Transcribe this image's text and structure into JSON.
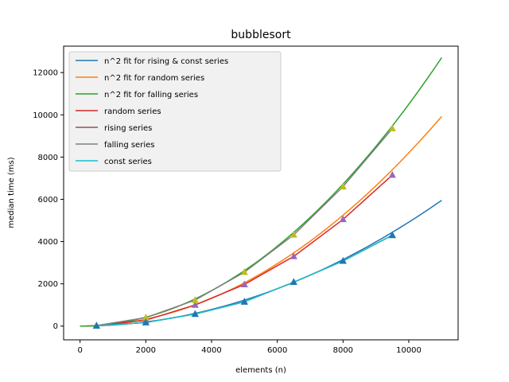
{
  "chart_data": {
    "type": "line",
    "title": "bubblesort",
    "xlabel": "elements (n)",
    "ylabel": "median time (ms)",
    "xlim": [
      -500,
      11500
    ],
    "ylim": [
      -650,
      13250
    ],
    "xticks": [
      0,
      2000,
      4000,
      6000,
      8000,
      10000
    ],
    "yticks": [
      0,
      2000,
      4000,
      6000,
      8000,
      10000,
      12000
    ],
    "grid": false,
    "legend_position": "upper-left",
    "fits": [
      {
        "name": "n^2 fit for rising & const series",
        "color": "#1f77b4",
        "coefficient": 4.92e-05,
        "x_range": [
          0,
          11000
        ]
      },
      {
        "name": "n^2 fit for random series",
        "color": "#ff7f0e",
        "coefficient": 8.2e-05,
        "x_range": [
          0,
          11000
        ]
      },
      {
        "name": "n^2 fit for falling series",
        "color": "#2ca02c",
        "coefficient": 0.000105,
        "x_range": [
          0,
          11000
        ]
      }
    ],
    "series": [
      {
        "name": "random series",
        "color": "#d62728",
        "marker_color": "#9467bd",
        "x": [
          500,
          2000,
          3500,
          5000,
          6500,
          8000,
          9500
        ],
        "y": [
          20,
          280,
          1000,
          1970,
          3300,
          5050,
          7150
        ]
      },
      {
        "name": "rising series",
        "color": "#8c564b",
        "marker_color": "#1f77b4",
        "x": [
          500,
          2000,
          3500,
          5000,
          6500,
          8000,
          9500
        ],
        "y": [
          15,
          170,
          570,
          1150,
          2080,
          3080,
          4300
        ]
      },
      {
        "name": "falling series",
        "color": "#7f7f7f",
        "marker_color": "#bcbd22",
        "x": [
          500,
          2000,
          3500,
          5000,
          6500,
          8000,
          9500
        ],
        "y": [
          25,
          400,
          1230,
          2550,
          4320,
          6600,
          9350
        ]
      },
      {
        "name": "const series",
        "color": "#17becf",
        "marker_color": "#1f77b4",
        "x": [
          500,
          2000,
          3500,
          5000,
          6500,
          8000,
          9500
        ],
        "y": [
          15,
          170,
          570,
          1150,
          2080,
          3080,
          4300
        ]
      }
    ]
  }
}
